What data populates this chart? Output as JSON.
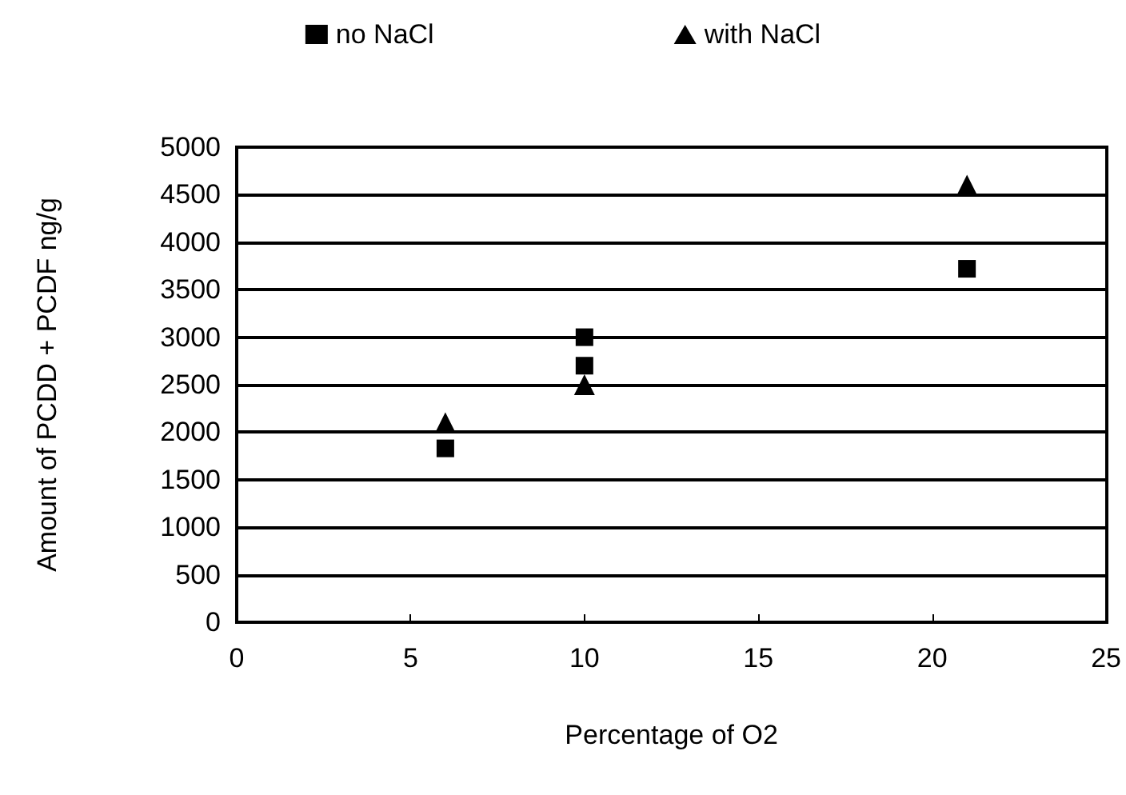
{
  "chart_data": {
    "type": "scatter",
    "xlabel": "Percentage of O2",
    "ylabel": "Amount of PCDD + PCDF ng/g",
    "xlim": [
      0,
      25
    ],
    "xticks": [
      0,
      5,
      10,
      15,
      20,
      25
    ],
    "ylim": [
      0,
      5000
    ],
    "yticks": [
      0,
      500,
      1000,
      1500,
      2000,
      2500,
      3000,
      3500,
      4000,
      4500,
      5000
    ],
    "grid": "y",
    "legend": "top",
    "series": [
      {
        "name": "no NaCl",
        "color": "#000000",
        "marker": "square",
        "x": [
          6,
          10,
          10,
          21
        ],
        "values": [
          1830,
          3000,
          2700,
          3720
        ]
      },
      {
        "name": "with NaCl",
        "color": "#000000",
        "marker": "triangle",
        "x": [
          6,
          10,
          21
        ],
        "values": [
          2100,
          2500,
          4600
        ]
      }
    ]
  }
}
